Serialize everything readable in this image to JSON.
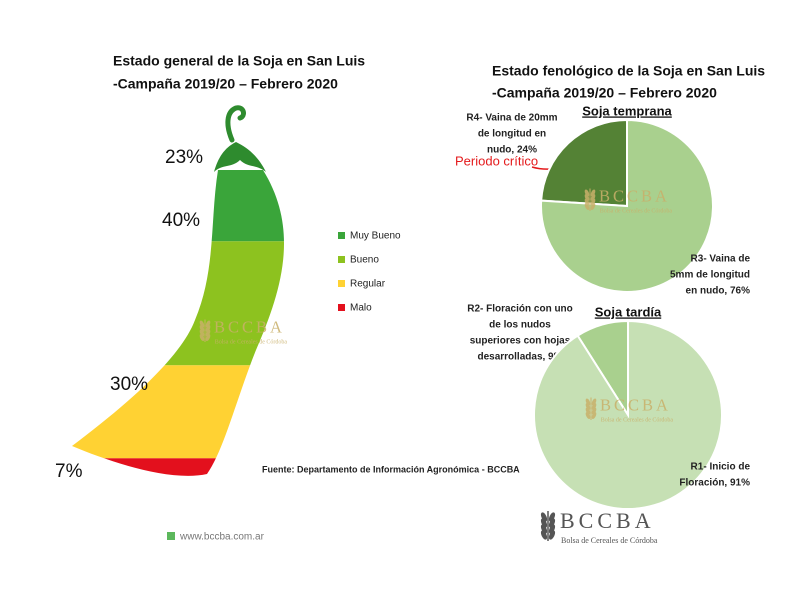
{
  "chart_data": [
    {
      "type": "pod",
      "title": "Estado general de la Soja en San Luis",
      "subtitle": "-Campaña 2019/20 – Febrero 2020",
      "categories": [
        "Muy Bueno",
        "Bueno",
        "Regular",
        "Malo"
      ],
      "values": [
        23,
        40,
        30,
        7
      ],
      "value_labels": [
        "23%",
        "40%",
        "30%",
        "7%"
      ],
      "colors": [
        "#3aa53a",
        "#8dc21f",
        "#ffd233",
        "#e3101d"
      ],
      "legend": "right"
    },
    {
      "type": "pie",
      "title": "Soja temprana",
      "categories": [
        [
          "R4- Vaina de 20mm",
          "de longitud en",
          "nudo, 24%"
        ],
        [
          "R3- Vaina de",
          "5mm de longitud",
          "en nudo, 76%"
        ]
      ],
      "values": [
        24,
        76
      ],
      "colors": [
        "#548235",
        "#a9d08e"
      ],
      "startangle": 90,
      "counterclock": true,
      "annotation": "Periodo crítico"
    },
    {
      "type": "pie",
      "title": "Soja tardía",
      "categories": [
        [
          "R2- Floración con uno",
          "de los nudos",
          "superiores con hojas",
          "desarrolladas, 9%"
        ],
        [
          "R1- Inicio de",
          "Floración, 91%"
        ]
      ],
      "values": [
        9,
        91
      ],
      "colors": [
        "#a9d08e",
        "#c6e0b4"
      ],
      "startangle": 90,
      "counterclock": true
    }
  ],
  "panel_title": [
    "Estado fenológico de la Soja en San Luis",
    "-Campaña 2019/20 – Febrero 2020"
  ],
  "source": "Fuente: Departamento de Información Agronómica - BCCBA",
  "website": "www.bccba.com.ar",
  "logo": {
    "name": "BCCBA",
    "subtitle": "Bolsa de Cereales de Córdoba"
  }
}
